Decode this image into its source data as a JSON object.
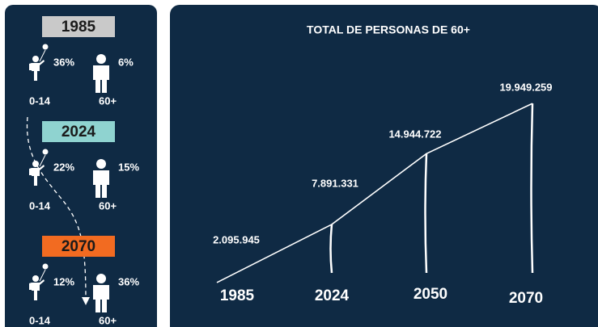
{
  "sidebar": {
    "groups": [
      {
        "year": "1985",
        "child_pct": "36%",
        "elder_pct": "6%",
        "child_label": "0-14",
        "elder_label": "60+"
      },
      {
        "year": "2024",
        "child_pct": "22%",
        "elder_pct": "15%",
        "child_label": "0-14",
        "elder_label": "60+"
      },
      {
        "year": "2070",
        "child_pct": "12%",
        "elder_pct": "36%",
        "child_label": "0-14",
        "elder_label": "60+"
      }
    ]
  },
  "chart_data": {
    "type": "line",
    "title": "TOTAL DE PERSONAS DE 60+",
    "categories": [
      "1985",
      "2024",
      "2050",
      "2070"
    ],
    "values": [
      2095945,
      7891331,
      14944722,
      19949259
    ],
    "value_labels": [
      "2.095.945",
      "7.891.331",
      "14.944.722",
      "19.949.259"
    ],
    "color": "#ffffff",
    "ylim": [
      0,
      20000000
    ]
  }
}
